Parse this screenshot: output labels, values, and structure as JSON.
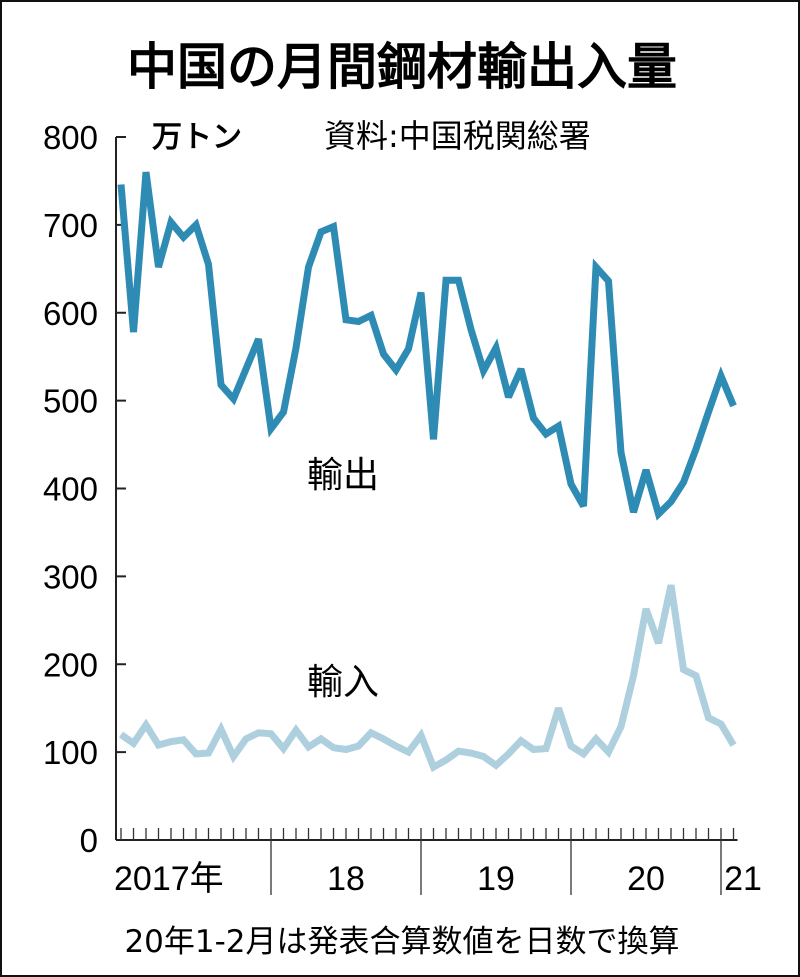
{
  "chart_data": {
    "type": "line",
    "title": "中国の月間鋼材輸出入量",
    "unit": "万トン",
    "source": "資料:中国税関総署",
    "note": "20年1-2月は発表合算数値を日数で換算",
    "ylim": [
      0,
      800
    ],
    "yticks": [
      0,
      100,
      200,
      300,
      400,
      500,
      600,
      700,
      800
    ],
    "x_range": "2017-01 to 2021-02 (monthly)",
    "year_labels": [
      "2017年",
      "18",
      "19",
      "20",
      "21"
    ],
    "series": [
      {
        "name": "輸出",
        "color": "#2e8bb3",
        "values": [
          746,
          578,
          760,
          652,
          703,
          686,
          700,
          655,
          518,
          502,
          536,
          570,
          468,
          487,
          560,
          652,
          692,
          698,
          592,
          590,
          597,
          553,
          535,
          559,
          623,
          456,
          637,
          637,
          581,
          534,
          560,
          504,
          536,
          480,
          462,
          471,
          405,
          380,
          652,
          636,
          441,
          373,
          421,
          371,
          385,
          407,
          445,
          487,
          528,
          494
        ]
      },
      {
        "name": "輸入",
        "color": "#aed0de",
        "values": [
          120,
          110,
          131,
          108,
          112,
          114,
          98,
          99,
          126,
          95,
          115,
          122,
          121,
          104,
          125,
          106,
          115,
          105,
          103,
          107,
          122,
          115,
          107,
          100,
          119,
          83,
          91,
          101,
          99,
          95,
          85,
          98,
          113,
          103,
          104,
          150,
          107,
          98,
          115,
          100,
          129,
          187,
          263,
          224,
          290,
          194,
          187,
          139,
          132,
          108
        ]
      }
    ]
  }
}
